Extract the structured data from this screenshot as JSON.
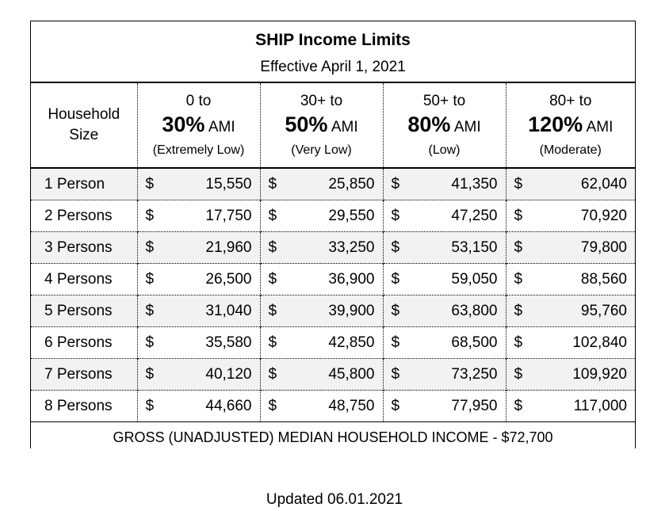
{
  "header": {
    "title": "SHIP Income Limits",
    "subtitle": "Effective April 1, 2021"
  },
  "columns": {
    "household": [
      "Household",
      "Size"
    ],
    "bands": [
      {
        "top": "0 to",
        "pct": "30%",
        "ami": "AMI",
        "desc": "(Extremely Low)"
      },
      {
        "top": "30+ to",
        "pct": "50%",
        "ami": "AMI",
        "desc": "(Very Low)"
      },
      {
        "top": "50+ to",
        "pct": "80%",
        "ami": "AMI",
        "desc": "(Low)"
      },
      {
        "top": "80+ to",
        "pct": "120%",
        "ami": "AMI",
        "desc": "(Moderate)"
      }
    ]
  },
  "currency_symbol": "$",
  "rows": [
    {
      "size": "1 Person",
      "values": [
        "15,550",
        "25,850",
        "41,350",
        "62,040"
      ]
    },
    {
      "size": "2 Persons",
      "values": [
        "17,750",
        "29,550",
        "47,250",
        "70,920"
      ]
    },
    {
      "size": "3 Persons",
      "values": [
        "21,960",
        "33,250",
        "53,150",
        "79,800"
      ]
    },
    {
      "size": "4 Persons",
      "values": [
        "26,500",
        "36,900",
        "59,050",
        "88,560"
      ]
    },
    {
      "size": "5 Persons",
      "values": [
        "31,040",
        "39,900",
        "63,800",
        "95,760"
      ]
    },
    {
      "size": "6 Persons",
      "values": [
        "35,580",
        "42,850",
        "68,500",
        "102,840"
      ]
    },
    {
      "size": "7 Persons",
      "values": [
        "40,120",
        "45,800",
        "73,250",
        "109,920"
      ]
    },
    {
      "size": "8 Persons",
      "values": [
        "44,660",
        "48,750",
        "77,950",
        "117,000"
      ]
    }
  ],
  "footer": "GROSS (UNADJUSTED) MEDIAN HOUSEHOLD INCOME - $72,700",
  "updated": "Updated 06.01.2021"
}
